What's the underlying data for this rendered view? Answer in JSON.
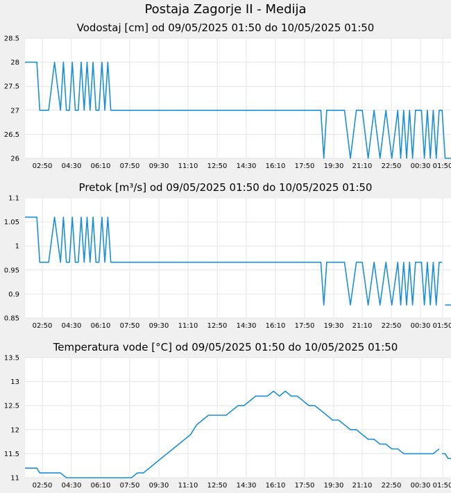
{
  "page_title": "Postaja Zagorje II - Medija",
  "colors": {
    "series": "#1a8fd6",
    "grid": "#e6e6e6",
    "plot_bg": "#ffffff",
    "page_bg": "#f0f0f0"
  },
  "chart_data": [
    {
      "type": "line",
      "title": "Vodostaj [cm] od 09/05/2025 01:50 do 10/05/2025 01:50",
      "xlabel": "",
      "ylabel": "",
      "x_ticks": [
        "02:50",
        "04:30",
        "06:10",
        "07:50",
        "09:30",
        "11:10",
        "12:50",
        "14:30",
        "16:10",
        "17:50",
        "19:30",
        "21:10",
        "22:50",
        "00:30",
        "01:50"
      ],
      "y_ticks": [
        "26",
        "26.5",
        "27",
        "27.5",
        "28",
        "28.5"
      ],
      "ylim": [
        26,
        28.5
      ],
      "xlim_minutes_since_start": [
        0,
        1440
      ],
      "grid": true,
      "series": [
        {
          "segments": [
            {
              "x": [
                0,
                40,
                50,
                60,
                80,
                100,
                120,
                130,
                140,
                150,
                160,
                170,
                180,
                190,
                200,
                210,
                220,
                230,
                240,
                250,
                260,
                270,
                280,
                290,
                300,
                310,
                320,
                330,
                340,
                350,
                360,
                370,
                380,
                390,
                400,
                410,
                420,
                430,
                440,
                450,
                460,
                470,
                480,
                490,
                500,
                510,
                520,
                530,
                540,
                550,
                560,
                570,
                580,
                590,
                600,
                620,
                640,
                660,
                680,
                700,
                720,
                740,
                760,
                780,
                800,
                820,
                840,
                860,
                880,
                900,
                920,
                940,
                960,
                980,
                1000,
                1010,
                1020,
                1030,
                1040,
                1050,
                1060,
                1080,
                1100,
                1120,
                1140,
                1160,
                1180,
                1200,
                1220,
                1240,
                1260,
                1270,
                1280,
                1290,
                1300,
                1310,
                1320,
                1330,
                1340,
                1350,
                1360,
                1370,
                1380,
                1390,
                1400,
                1410,
                1420,
                1430,
                1440
              ],
              "y": [
                28,
                28,
                27,
                27,
                27,
                28,
                27,
                28,
                27,
                27,
                28,
                27,
                27,
                28,
                27,
                28,
                27,
                28,
                27,
                27,
                28,
                27,
                28,
                27,
                27,
                27,
                27,
                27,
                27,
                27,
                27,
                27,
                27,
                27,
                27,
                27,
                27,
                27,
                27,
                27,
                27,
                27,
                27,
                27,
                27,
                27,
                27,
                27,
                27,
                27,
                27,
                27,
                27,
                27,
                27,
                27,
                27,
                27,
                27,
                27,
                27,
                27,
                27,
                27,
                27,
                27,
                27,
                27,
                27,
                27,
                27,
                27,
                27,
                27,
                27,
                26,
                27,
                27,
                27,
                27,
                27,
                27,
                26,
                27,
                27,
                26,
                27,
                26,
                27,
                26,
                27,
                26,
                27,
                26,
                27,
                26,
                27,
                27,
                27,
                26,
                27,
                26,
                27,
                26,
                27,
                27,
                26,
                26,
                26
              ]
            }
          ]
        }
      ]
    },
    {
      "type": "line",
      "title": "Pretok [m³/s] od 09/05/2025 01:50 do 10/05/2025 01:50",
      "xlabel": "",
      "ylabel": "",
      "x_ticks": [
        "02:50",
        "04:30",
        "06:10",
        "07:50",
        "09:30",
        "11:10",
        "12:50",
        "14:30",
        "16:10",
        "17:50",
        "19:30",
        "21:10",
        "22:50",
        "00:30",
        "01:50"
      ],
      "y_ticks": [
        "0.85",
        "0.9",
        "0.95",
        "1",
        "1.05",
        "1.1"
      ],
      "ylim": [
        0.85,
        1.1
      ],
      "grid": true,
      "series": [
        {
          "segments": [
            {
              "x": [
                0,
                40,
                50,
                60,
                80,
                100,
                120,
                130,
                140,
                150,
                160,
                170,
                180,
                190,
                200,
                210,
                220,
                230,
                240,
                250,
                260,
                270,
                280,
                290,
                300,
                320,
                340,
                360,
                380,
                400,
                420,
                440,
                460,
                480,
                500,
                520,
                540,
                560,
                580,
                600,
                620,
                640,
                660,
                680,
                700,
                720,
                740,
                760,
                780,
                800,
                820,
                840,
                860,
                880,
                900,
                920,
                940,
                960,
                980,
                1000,
                1010,
                1020,
                1030,
                1040,
                1050,
                1060,
                1080,
                1100,
                1120,
                1140,
                1160,
                1180,
                1200,
                1220,
                1240,
                1260,
                1270,
                1280,
                1290,
                1300,
                1310,
                1320,
                1330,
                1340,
                1350,
                1360,
                1370,
                1380,
                1390,
                1400,
                1410
              ],
              "y": [
                1.06,
                1.06,
                0.966,
                0.966,
                0.966,
                1.06,
                0.966,
                1.06,
                0.966,
                0.966,
                1.06,
                0.966,
                0.966,
                1.06,
                0.966,
                1.06,
                0.966,
                1.06,
                0.966,
                0.966,
                1.06,
                0.966,
                1.06,
                0.966,
                0.966,
                0.966,
                0.966,
                0.966,
                0.966,
                0.966,
                0.966,
                0.966,
                0.966,
                0.966,
                0.966,
                0.966,
                0.966,
                0.966,
                0.966,
                0.966,
                0.966,
                0.966,
                0.966,
                0.966,
                0.966,
                0.966,
                0.966,
                0.966,
                0.966,
                0.966,
                0.966,
                0.966,
                0.966,
                0.966,
                0.966,
                0.966,
                0.966,
                0.966,
                0.966,
                0.966,
                0.877,
                0.966,
                0.966,
                0.966,
                0.966,
                0.966,
                0.966,
                0.877,
                0.966,
                0.966,
                0.877,
                0.966,
                0.877,
                0.966,
                0.877,
                0.966,
                0.877,
                0.966,
                0.877,
                0.966,
                0.877,
                0.966,
                0.966,
                0.966,
                0.877,
                0.966,
                0.877,
                0.966,
                0.877,
                0.966,
                0.966
              ]
            },
            {
              "x": [
                1420,
                1440
              ],
              "y": [
                0.877,
                0.877
              ]
            }
          ]
        }
      ]
    },
    {
      "type": "line",
      "title": "Temperatura vode [°C] od 09/05/2025 01:50 do 10/05/2025 01:50",
      "xlabel": "",
      "ylabel": "",
      "x_ticks": [
        "02:50",
        "04:30",
        "06:10",
        "07:50",
        "09:30",
        "11:10",
        "12:50",
        "14:30",
        "16:10",
        "17:50",
        "19:30",
        "21:10",
        "22:50",
        "00:30",
        "01:50"
      ],
      "y_ticks": [
        "11",
        "11.5",
        "12",
        "12.5",
        "13",
        "13.5"
      ],
      "ylim": [
        11,
        13.5
      ],
      "grid": true,
      "series": [
        {
          "segments": [
            {
              "x": [
                0,
                40,
                50,
                60,
                80,
                100,
                120,
                140,
                160,
                180,
                200,
                220,
                240,
                260,
                280,
                300,
                320,
                340,
                360,
                380,
                400,
                420,
                440,
                460,
                480,
                500,
                520,
                540,
                560,
                580,
                600,
                620,
                640,
                660,
                680,
                700,
                720,
                740,
                760,
                780,
                800,
                820,
                840,
                860,
                880,
                900,
                920,
                940,
                960,
                980,
                1000,
                1020,
                1040,
                1060,
                1080,
                1100,
                1120,
                1140,
                1160,
                1180,
                1200,
                1220,
                1240,
                1260,
                1280,
                1300,
                1320,
                1340,
                1360,
                1380,
                1400
              ],
              "y": [
                11.2,
                11.2,
                11.1,
                11.1,
                11.1,
                11.1,
                11.1,
                11,
                11,
                11,
                11,
                11,
                11,
                11,
                11,
                11,
                11,
                11,
                11,
                11.1,
                11.1,
                11.2,
                11.3,
                11.4,
                11.5,
                11.6,
                11.7,
                11.8,
                11.9,
                12.1,
                12.2,
                12.3,
                12.3,
                12.3,
                12.3,
                12.4,
                12.5,
                12.5,
                12.6,
                12.7,
                12.7,
                12.7,
                12.8,
                12.7,
                12.8,
                12.7,
                12.7,
                12.6,
                12.5,
                12.5,
                12.4,
                12.3,
                12.2,
                12.2,
                12.1,
                12,
                12,
                11.9,
                11.8,
                11.8,
                11.7,
                11.7,
                11.6,
                11.6,
                11.5,
                11.5,
                11.5,
                11.5,
                11.5,
                11.5,
                11.6
              ]
            },
            {
              "x": [
                1410,
                1420,
                1430,
                1440
              ],
              "y": [
                11.5,
                11.5,
                11.4,
                11.4
              ]
            }
          ]
        }
      ]
    }
  ]
}
